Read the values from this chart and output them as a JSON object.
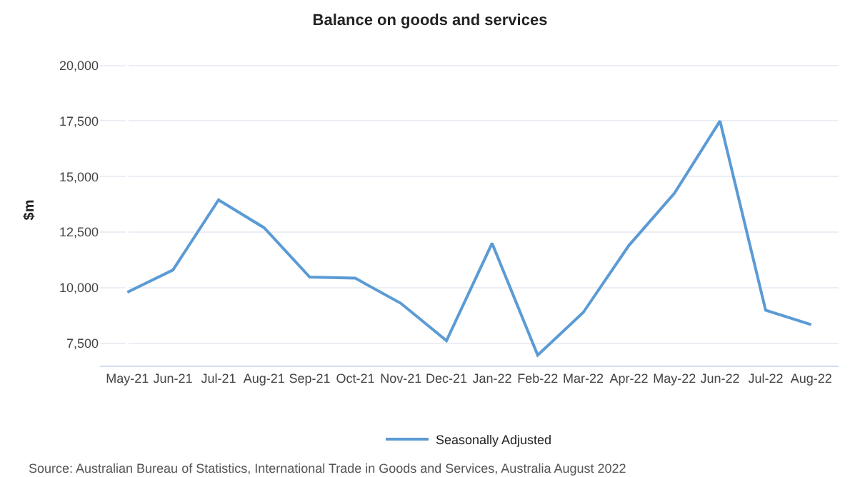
{
  "chart_data": {
    "type": "line",
    "title": "Balance on goods and services",
    "ylabel": "$m",
    "categories": [
      "May-21",
      "Jun-21",
      "Jul-21",
      "Aug-21",
      "Sep-21",
      "Oct-21",
      "Nov-21",
      "Dec-21",
      "Jan-22",
      "Feb-22",
      "Mar-22",
      "Apr-22",
      "May-22",
      "Jun-22",
      "Jul-22",
      "Aug-22"
    ],
    "series": [
      {
        "name": "Seasonally Adjusted",
        "color": "#5b9bd5",
        "values": [
          9800,
          10800,
          13950,
          12700,
          10480,
          10430,
          9300,
          7620,
          12000,
          6970,
          8890,
          11900,
          14250,
          17500,
          8990,
          8340
        ]
      }
    ],
    "ylim": [
      6500,
      20500
    ],
    "yticks": [
      {
        "value": 7500,
        "label": "7,500"
      },
      {
        "value": 10000,
        "label": "10,000"
      },
      {
        "value": 12500,
        "label": "12,500"
      },
      {
        "value": 15000,
        "label": "15,000"
      },
      {
        "value": 17500,
        "label": "17,500"
      },
      {
        "value": 20000,
        "label": "20,000"
      }
    ],
    "grid": "y",
    "legend": "bottom",
    "marker": "none",
    "line_style": "solid",
    "annotations": [
      "Source: Australian Bureau of Statistics, International Trade in Goods and Services, Australia August 2022"
    ]
  }
}
